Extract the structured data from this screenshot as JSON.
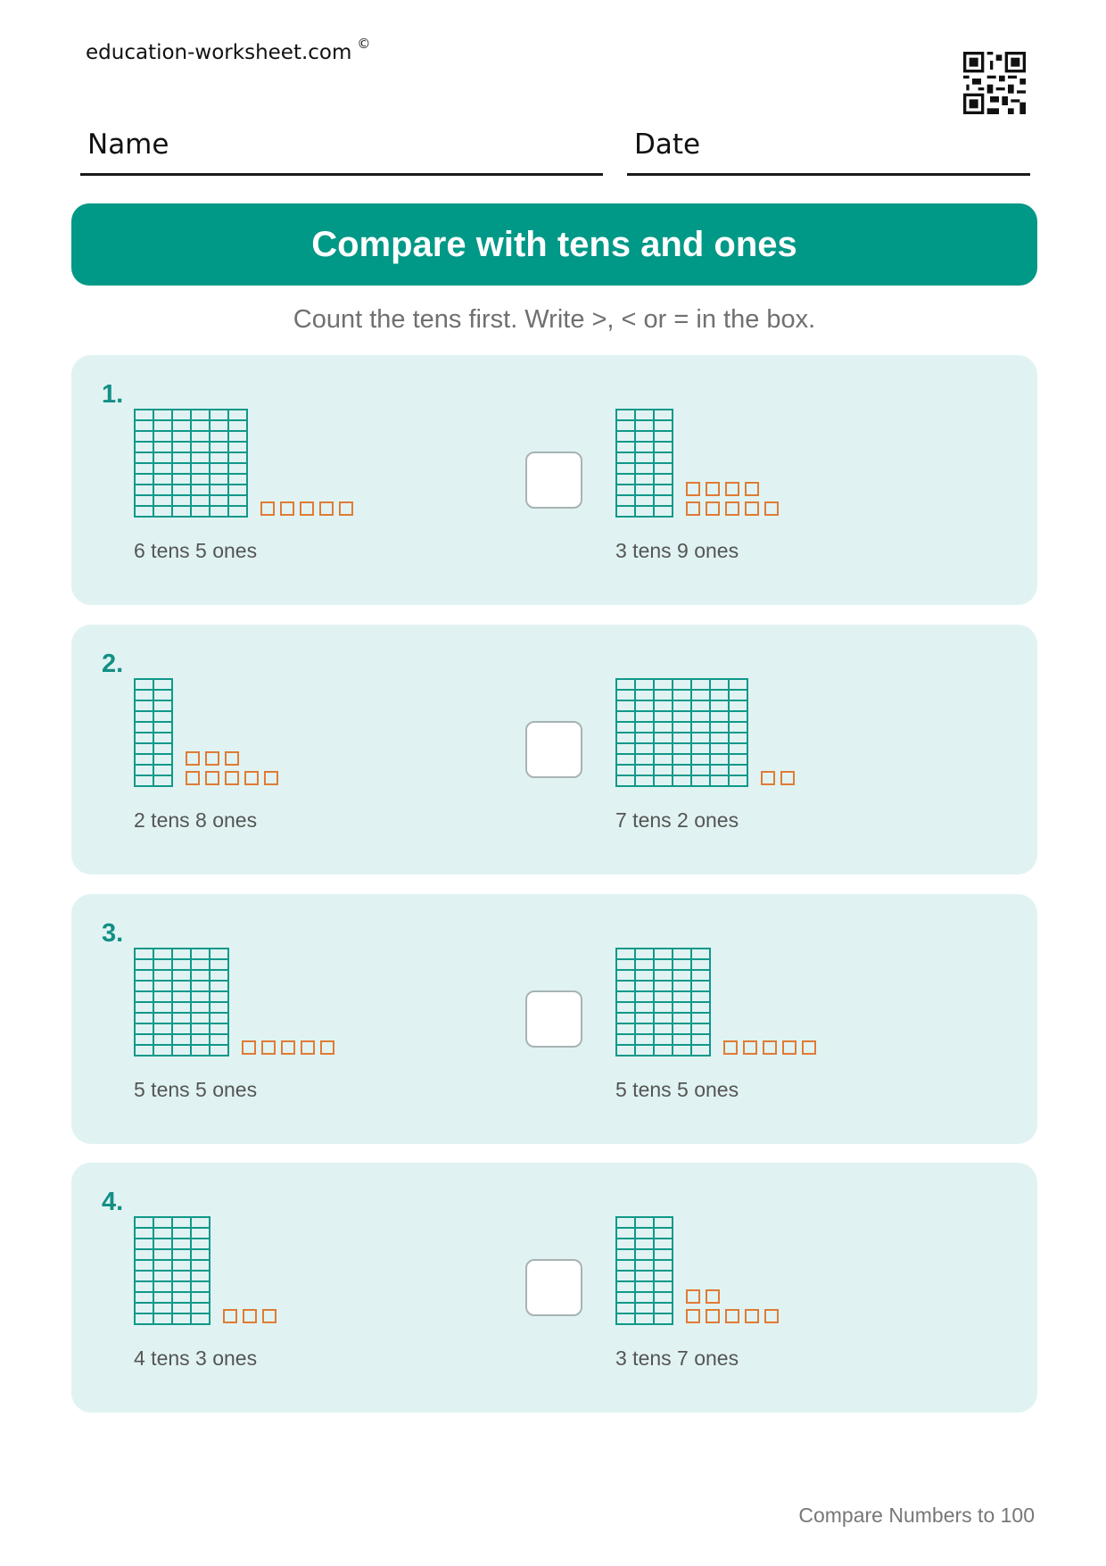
{
  "header": {
    "site": "education-worksheet.com",
    "copyright": "©",
    "name_label": "Name",
    "date_label": "Date"
  },
  "title": "Compare with tens and ones",
  "instruction": "Count the tens first. Write >, < or = in the box.",
  "problems": [
    {
      "number": "1.",
      "left": {
        "tens": 6,
        "ones": 5,
        "label": "6 tens 5 ones"
      },
      "right": {
        "tens": 3,
        "ones": 9,
        "label": "3 tens 9 ones"
      }
    },
    {
      "number": "2.",
      "left": {
        "tens": 2,
        "ones": 8,
        "label": "2 tens 8 ones"
      },
      "right": {
        "tens": 7,
        "ones": 2,
        "label": "7 tens 2 ones"
      }
    },
    {
      "number": "3.",
      "left": {
        "tens": 5,
        "ones": 5,
        "label": "5 tens 5 ones"
      },
      "right": {
        "tens": 5,
        "ones": 5,
        "label": "5 tens 5 ones"
      }
    },
    {
      "number": "4.",
      "left": {
        "tens": 4,
        "ones": 3,
        "label": "4 tens 3 ones"
      },
      "right": {
        "tens": 3,
        "ones": 7,
        "label": "3 tens 7 ones"
      }
    }
  ],
  "footer": "Compare Numbers to 100",
  "colors": {
    "teal": "#009886",
    "rod": "#10988a",
    "ones": "#e07b35",
    "panel": "#e0f3f2"
  },
  "icons": {
    "qr": "qr-code-icon"
  }
}
